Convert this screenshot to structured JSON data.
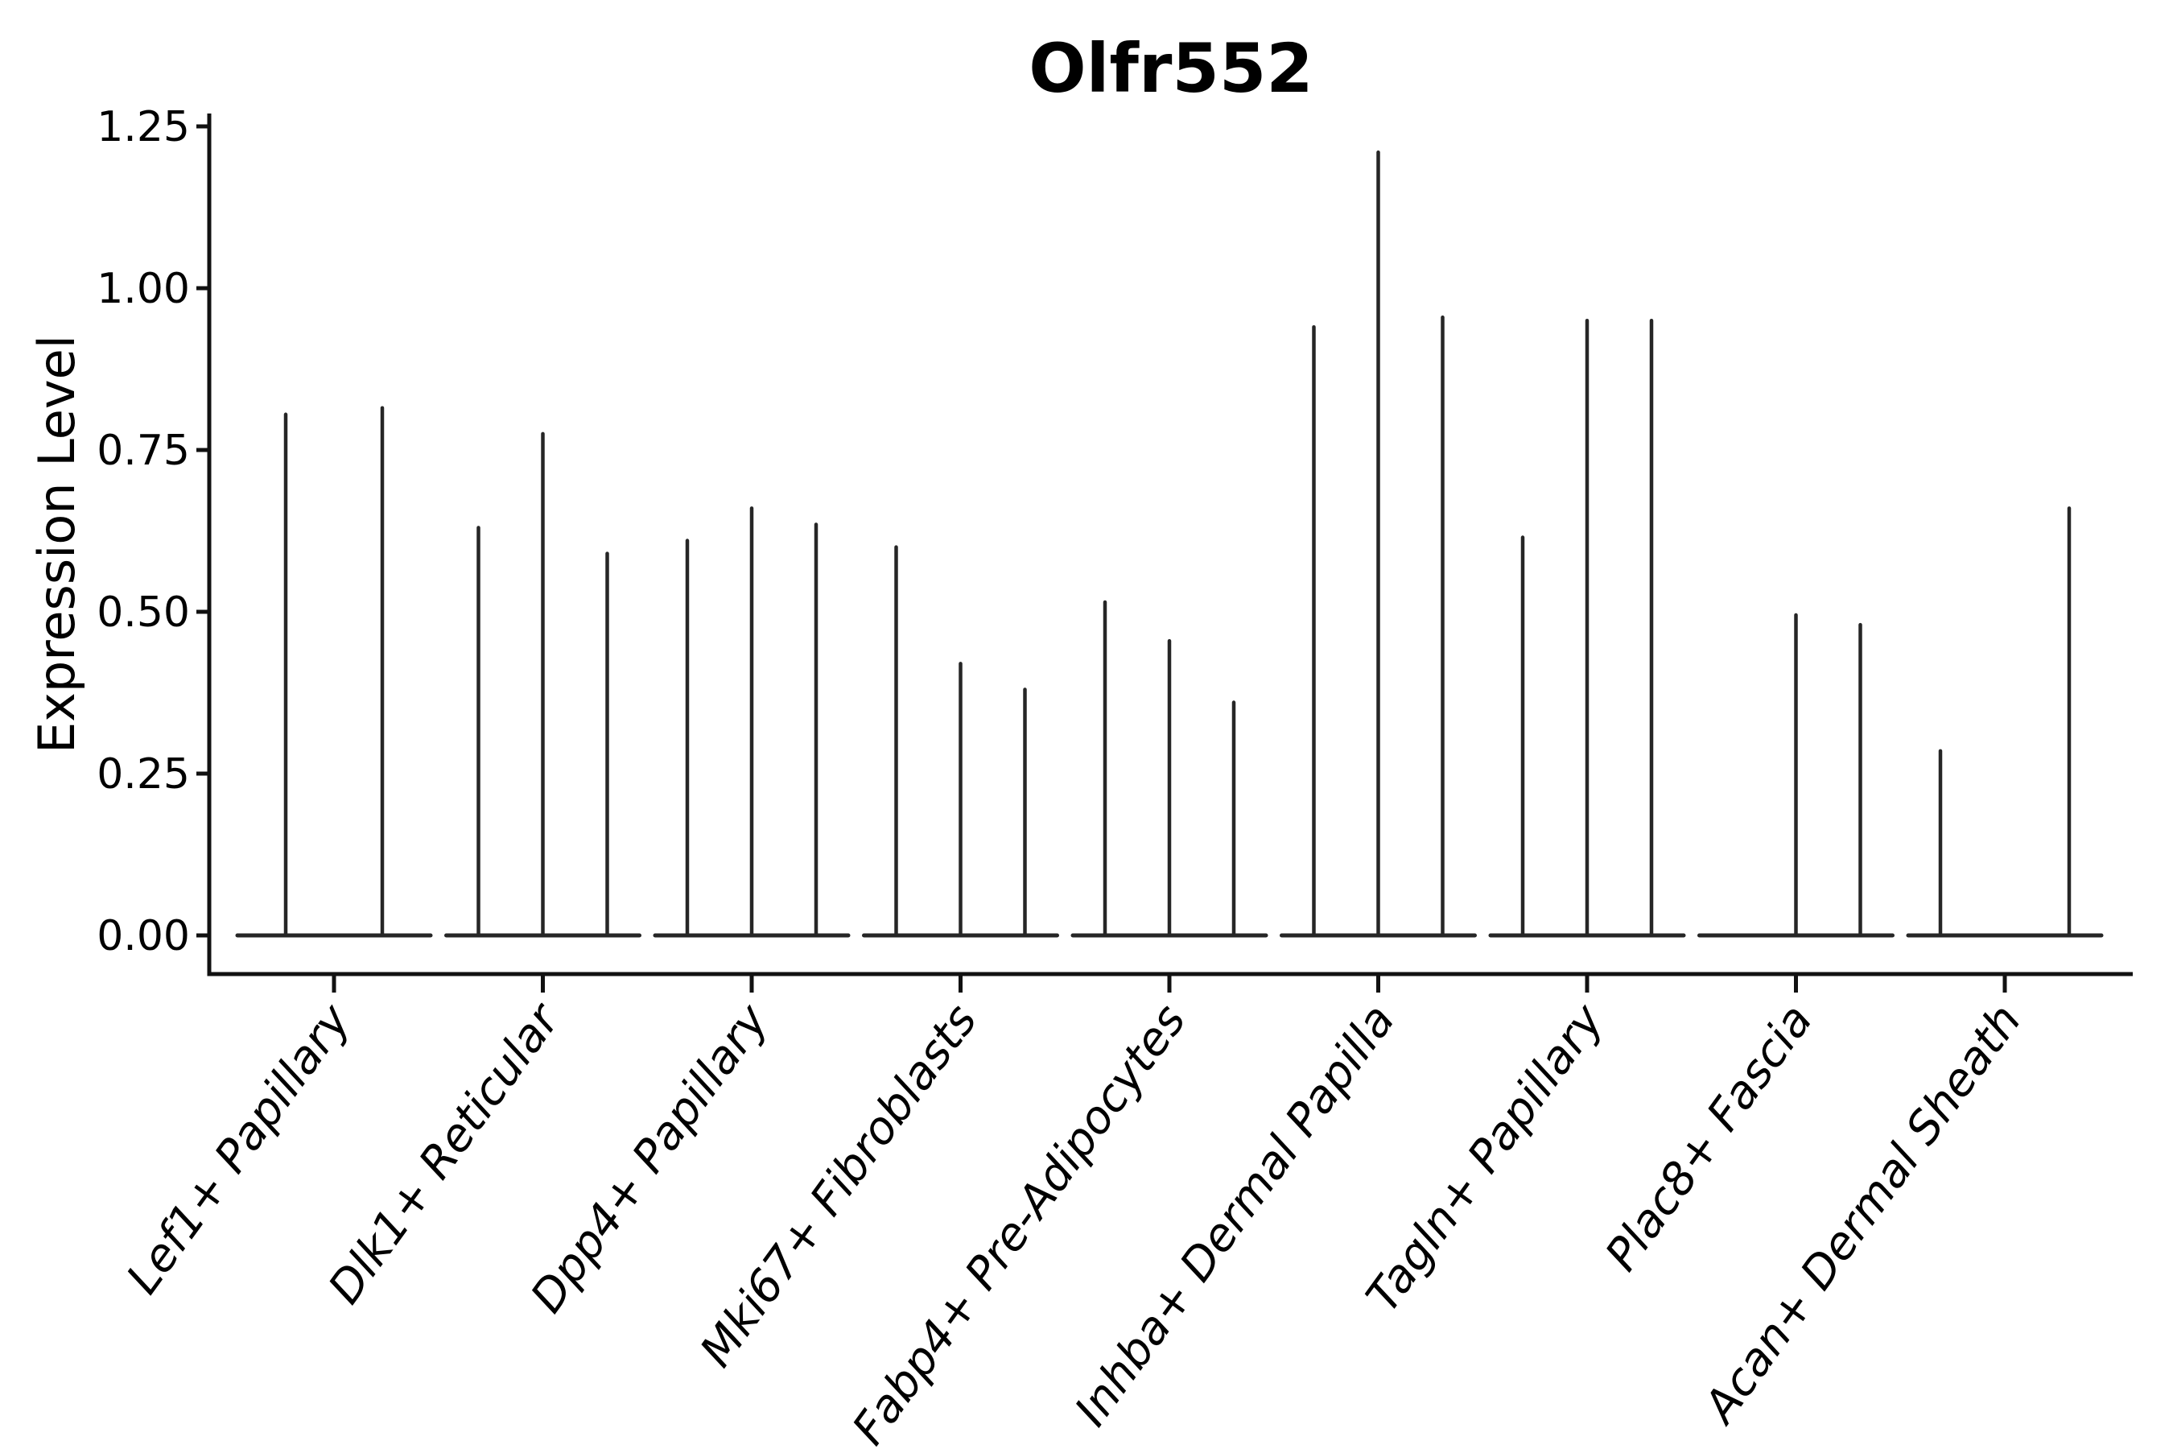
{
  "chart_data": {
    "type": "violin",
    "title": "Olfr552",
    "xlabel": "",
    "ylabel": "Expression Level",
    "categories": [
      "Lef1+ Papillary",
      "Dlk1+ Reticular",
      "Dpp4+ Papillary",
      "Mki67+ Fibroblasts",
      "Fabp4+ Pre-Adipocytes",
      "Inhba+ Dermal Papilla",
      "Tagln+ Papillary",
      "Plac8+ Fascia",
      "Acan+ Dermal Sheath"
    ],
    "ytick_labels": [
      "0.00",
      "0.25",
      "0.50",
      "0.75",
      "1.00",
      "1.25"
    ],
    "ytick_values": [
      0.0,
      0.25,
      0.5,
      0.75,
      1.0,
      1.25
    ],
    "ylim": [
      -0.06,
      1.27
    ],
    "grid": "off",
    "legend": "none",
    "style_note": "needle-thin violins: most cells at 0 form a flat bar at baseline, expressing cells form thin vertical spikes",
    "groups": [
      {
        "label": "Lef1+ Papillary",
        "slots": 2,
        "violins": [
          {
            "slot": 0,
            "value": 0.805
          },
          {
            "slot": 1,
            "value": 0.815
          }
        ]
      },
      {
        "label": "Dlk1+ Reticular",
        "slots": 3,
        "violins": [
          {
            "slot": 0,
            "value": 0.63
          },
          {
            "slot": 1,
            "value": 0.775
          },
          {
            "slot": 2,
            "value": 0.59
          }
        ]
      },
      {
        "label": "Dpp4+ Papillary",
        "slots": 3,
        "violins": [
          {
            "slot": 0,
            "value": 0.61
          },
          {
            "slot": 1,
            "value": 0.66
          },
          {
            "slot": 2,
            "value": 0.635
          }
        ]
      },
      {
        "label": "Mki67+ Fibroblasts",
        "slots": 3,
        "violins": [
          {
            "slot": 0,
            "value": 0.6
          },
          {
            "slot": 1,
            "value": 0.42
          },
          {
            "slot": 2,
            "value": 0.38
          }
        ]
      },
      {
        "label": "Fabp4+ Pre-Adipocytes",
        "slots": 3,
        "violins": [
          {
            "slot": 0,
            "value": 0.515
          },
          {
            "slot": 1,
            "value": 0.455
          },
          {
            "slot": 2,
            "value": 0.36
          }
        ]
      },
      {
        "label": "Inhba+ Dermal Papilla",
        "slots": 3,
        "violins": [
          {
            "slot": 0,
            "value": 0.94
          },
          {
            "slot": 1,
            "value": 1.21
          },
          {
            "slot": 2,
            "value": 0.955
          }
        ]
      },
      {
        "label": "Tagln+ Papillary",
        "slots": 3,
        "violins": [
          {
            "slot": 0,
            "value": 0.615
          },
          {
            "slot": 1,
            "value": 0.95
          },
          {
            "slot": 2,
            "value": 0.95
          }
        ]
      },
      {
        "label": "Plac8+ Fascia",
        "slots": 3,
        "violins": [
          {
            "slot": 1,
            "value": 0.495
          },
          {
            "slot": 2,
            "value": 0.48
          }
        ]
      },
      {
        "label": "Acan+ Dermal Sheath",
        "slots": 3,
        "violins": [
          {
            "slot": 0,
            "value": 0.285
          },
          {
            "slot": 2,
            "value": 0.66
          }
        ]
      }
    ]
  },
  "colors": {
    "background": "#ffffff",
    "violin_stroke": "#262626",
    "axis": "#111111",
    "text": "#000000"
  }
}
